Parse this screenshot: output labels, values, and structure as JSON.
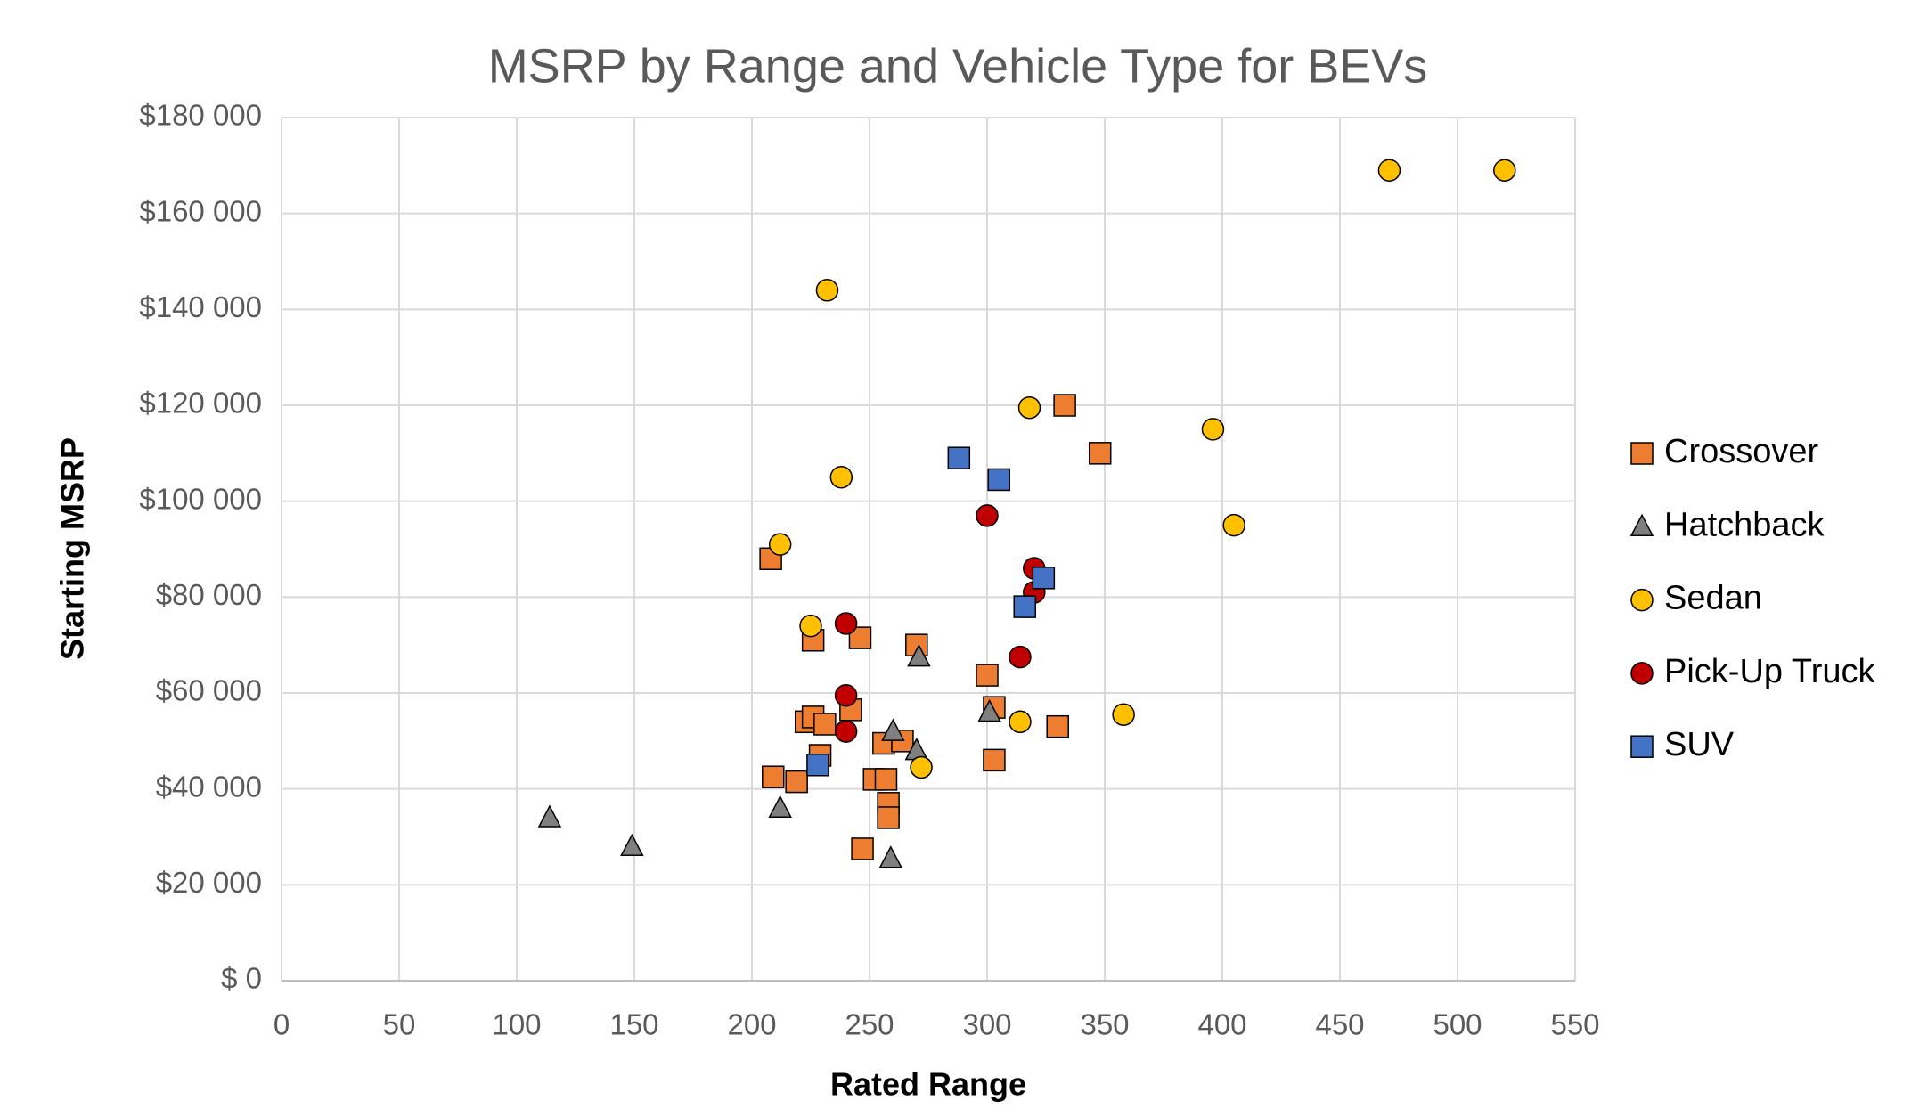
{
  "chart_data": {
    "type": "scatter",
    "title": "MSRP by Range and Vehicle Type for BEVs",
    "x_label": "Rated Range",
    "y_label": "Starting MSRP",
    "xlim": [
      0,
      550
    ],
    "xticks": [
      0,
      50,
      100,
      150,
      200,
      250,
      300,
      350,
      400,
      450,
      500,
      550
    ],
    "ylim": [
      0,
      180000
    ],
    "yticks": [
      {
        "value": 0,
        "label": "$ 0"
      },
      {
        "value": 20000,
        "label": "$20 000"
      },
      {
        "value": 40000,
        "label": "$40 000"
      },
      {
        "value": 60000,
        "label": "$60 000"
      },
      {
        "value": 80000,
        "label": "$80 000"
      },
      {
        "value": 100000,
        "label": "$100 000"
      },
      {
        "value": 120000,
        "label": "$120 000"
      },
      {
        "value": 140000,
        "label": "$140 000"
      },
      {
        "value": 160000,
        "label": "$160 000"
      },
      {
        "value": 180000,
        "label": "$180 000"
      }
    ],
    "grid": true,
    "legend": "right",
    "series": [
      {
        "name": "Crossover",
        "color": "#ed7d31",
        "marker": "square",
        "x": [
          208,
          226,
          246,
          270,
          300,
          303,
          330,
          303,
          333,
          348,
          223,
          226,
          231,
          242,
          229,
          209,
          219,
          252,
          257,
          256,
          264,
          258,
          258,
          247
        ],
        "y": [
          88000,
          71000,
          71500,
          70000,
          63700,
          57000,
          53000,
          46000,
          120000,
          110000,
          54000,
          55000,
          53500,
          56500,
          47000,
          42500,
          41500,
          42000,
          42000,
          49500,
          50000,
          37000,
          34000,
          27500
        ]
      },
      {
        "name": "Hatchback",
        "color": "#7f7f7f",
        "marker": "triangle",
        "x": [
          114,
          149,
          212,
          259,
          260,
          270,
          271,
          301
        ],
        "y": [
          34000,
          28000,
          36000,
          25500,
          52000,
          48000,
          67500,
          56000
        ]
      },
      {
        "name": "Sedan",
        "color": "#ffc000",
        "marker": "circle",
        "x": [
          212,
          232,
          238,
          225,
          272,
          318,
          396,
          405,
          314,
          358,
          471,
          520
        ],
        "y": [
          91000,
          144000,
          105000,
          74000,
          44500,
          119500,
          115000,
          95000,
          54000,
          55500,
          169000,
          169000
        ]
      },
      {
        "name": "Pick-Up Truck",
        "color": "#c00000",
        "marker": "circle",
        "x": [
          300,
          320,
          320,
          314,
          240,
          240,
          240
        ],
        "y": [
          97000,
          86000,
          81000,
          67500,
          74500,
          59500,
          52000
        ]
      },
      {
        "name": "SUV",
        "color": "#4472c4",
        "marker": "square",
        "x": [
          288,
          305,
          324,
          316,
          228
        ],
        "y": [
          109000,
          104500,
          84000,
          78000,
          45000
        ]
      }
    ]
  }
}
